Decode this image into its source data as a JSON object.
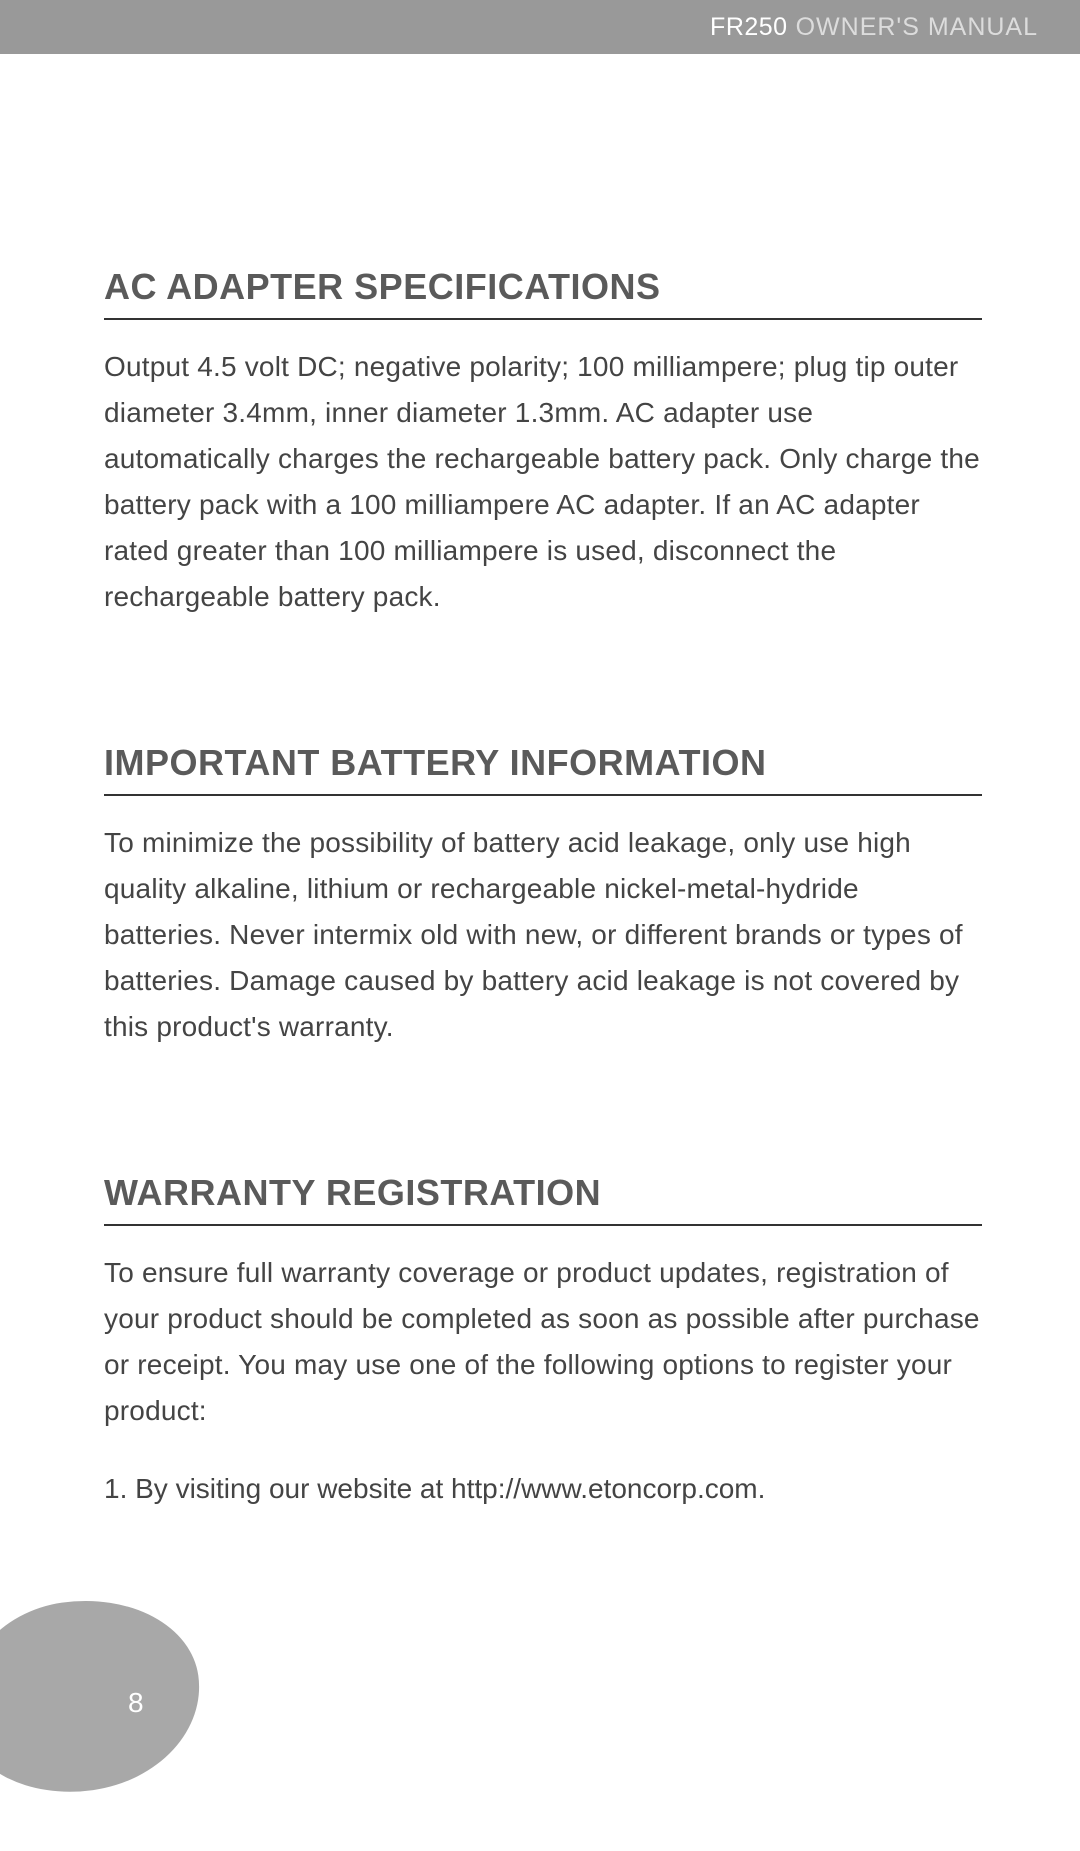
{
  "header": {
    "model": "FR250",
    "title": "OWNER'S MANUAL",
    "bar_color": "#999999",
    "model_color": "#ffffff",
    "title_color": "#dcdcdc"
  },
  "sections": [
    {
      "heading": "AC ADAPTER SPECIFICATIONS",
      "body": "Output 4.5 volt DC; negative polarity; 100 milliampere; plug tip outer diameter 3.4mm, inner diameter 1.3mm. AC adapter use automatically charges the rechargeable battery pack. Only charge the battery pack with a 100 milliampere AC adapter. If an AC adapter rated greater than 100 milliampere is used, disconnect the rechargeable battery pack."
    },
    {
      "heading": "IMPORTANT BATTERY INFORMATION",
      "body": "To minimize the possibility of battery acid leakage, only use high quality alkaline, lithium or rechargeable nickel-metal-hydride batteries. Never intermix old with new, or different brands or types of batteries. Damage caused by battery acid leakage is not covered by this product's warranty."
    },
    {
      "heading": "WARRANTY REGISTRATION",
      "body": "To ensure full warranty coverage or product updates, registration of your product should be completed as soon as possible after purchase or receipt. You may use one of the following options to register your product:",
      "list": [
        "1. By visiting our website at http://www.etoncorp.com."
      ]
    }
  ],
  "page_number": "8",
  "typography": {
    "heading_color": "#5a5a5a",
    "heading_fontsize": 36,
    "body_color": "#444444",
    "body_fontsize": 28,
    "body_lineheight": 46,
    "rule_color": "#333333"
  },
  "blob": {
    "color": "#a8a8a8",
    "page_number_color": "#ffffff"
  },
  "background_color": "#ffffff"
}
